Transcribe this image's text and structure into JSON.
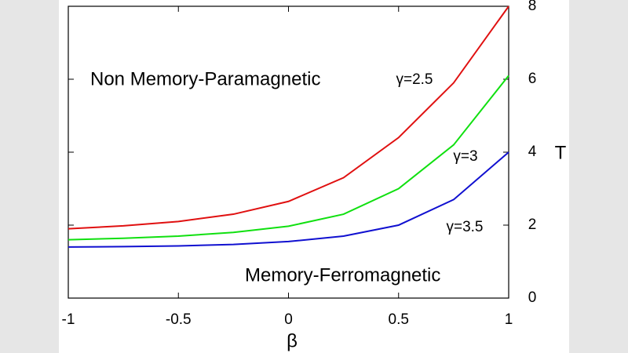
{
  "chart_data": {
    "type": "line",
    "x": [
      -1,
      -0.75,
      -0.5,
      -0.25,
      0,
      0.25,
      0.5,
      0.75,
      1
    ],
    "series": [
      {
        "name": "γ=2.5",
        "color": "#e01010",
        "values": [
          1.9,
          1.98,
          2.1,
          2.3,
          2.65,
          3.3,
          4.4,
          5.9,
          8
        ]
      },
      {
        "name": "γ=3",
        "color": "#10e010",
        "values": [
          1.6,
          1.64,
          1.7,
          1.8,
          1.97,
          2.3,
          3.0,
          4.2,
          6.1
        ]
      },
      {
        "name": "γ=3.5",
        "color": "#1010d0",
        "values": [
          1.4,
          1.41,
          1.43,
          1.47,
          1.55,
          1.7,
          2.0,
          2.7,
          4.0
        ]
      }
    ],
    "xlim": [
      -1,
      1
    ],
    "xticks": [
      -1,
      -0.5,
      0,
      0.5,
      1
    ],
    "ylim": [
      0,
      8
    ],
    "yticks": [
      0,
      2,
      4,
      6,
      8
    ],
    "x_label": "β",
    "y_label": "T",
    "annotations": [
      "Non Memory-Paramagnetic",
      "Memory-Ferromagnetic"
    ]
  }
}
